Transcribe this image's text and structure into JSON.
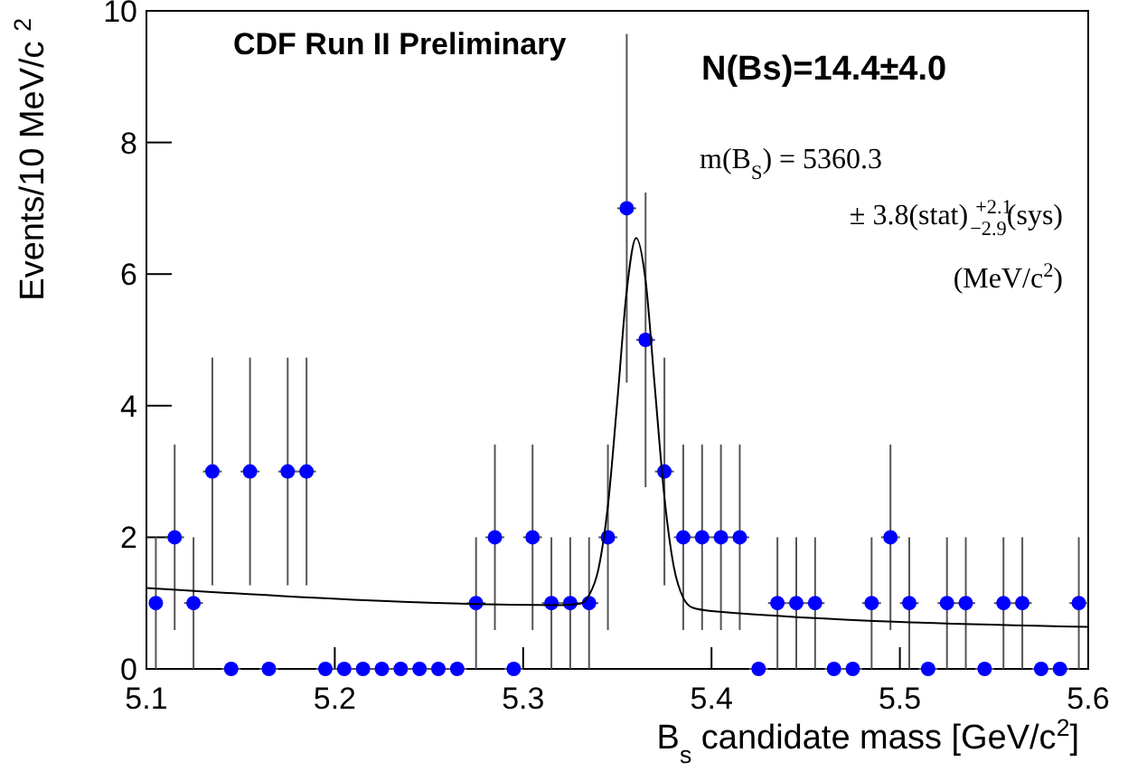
{
  "chart_data": {
    "type": "scatter",
    "xlabel": "B$_{s}$ candidate mass [GeV/c$^{2}$]",
    "ylabel": "Events/10 MeV/c $^{2}$",
    "annotations": [
      "CDF Run II Preliminary",
      "N(Bs)=14.4±4.0",
      "m(B$_{S}$) = 5360.3",
      "± 3.8(stat) $^{+2.1}$$_{−2.9}$(sys)",
      "(MeV/c$^{2}$)"
    ],
    "xlim": [
      5.1,
      5.6
    ],
    "xticks": [
      5.1,
      5.2,
      5.3,
      5.4,
      5.5,
      5.6
    ],
    "ylim": [
      0,
      10
    ],
    "yticks": [
      0,
      2,
      4,
      6,
      8,
      10
    ],
    "grid": false,
    "marker": "circle",
    "series": [
      {
        "type": "scatter",
        "color": "#0000ff",
        "x": [
          5.105,
          5.115,
          5.125,
          5.135,
          5.145,
          5.155,
          5.165,
          5.175,
          5.185,
          5.195,
          5.205,
          5.215,
          5.225,
          5.235,
          5.245,
          5.255,
          5.265,
          5.275,
          5.285,
          5.295,
          5.305,
          5.315,
          5.325,
          5.335,
          5.345,
          5.355,
          5.365,
          5.375,
          5.385,
          5.395,
          5.405,
          5.415,
          5.425,
          5.435,
          5.445,
          5.455,
          5.465,
          5.475,
          5.485,
          5.495,
          5.505,
          5.515,
          5.525,
          5.535,
          5.545,
          5.555,
          5.565,
          5.575,
          5.585,
          5.595
        ],
        "values": [
          1,
          2,
          1,
          3,
          0,
          3,
          0,
          3,
          3,
          0,
          0,
          0,
          0,
          0,
          0,
          0,
          0,
          1,
          2,
          0,
          2,
          1,
          1,
          1,
          2,
          7,
          5,
          3,
          2,
          2,
          2,
          2,
          0,
          1,
          1,
          1,
          0,
          0,
          1,
          2,
          1,
          0,
          1,
          1,
          0,
          1,
          1,
          0,
          0,
          1
        ],
        "errors": [
          1,
          1.41,
          1,
          1.73,
          null,
          1.73,
          null,
          1.73,
          1.73,
          null,
          null,
          null,
          null,
          null,
          null,
          null,
          null,
          1,
          1.41,
          null,
          1.41,
          1,
          1,
          1,
          1.41,
          2.65,
          2.24,
          1.73,
          1.41,
          1.41,
          1.41,
          1.41,
          null,
          1,
          1,
          1,
          null,
          null,
          1,
          1.41,
          1,
          null,
          1,
          1,
          null,
          1,
          1,
          null,
          null,
          1
        ],
        "xerrors": [
          null,
          0.005,
          0.005,
          0.005,
          0.005,
          0.005,
          0.005,
          0.005,
          0.005,
          0.005,
          0.005,
          0.005,
          0.005,
          0.005,
          0.005,
          0.005,
          0.005,
          0.005,
          0.005,
          0.005,
          0.005,
          0.005,
          0.005,
          0.005,
          0.005,
          0.005,
          0.005,
          0.005,
          0.005,
          0.005,
          0.005,
          0.005,
          0.005,
          0.005,
          0.005,
          0.005,
          0.005,
          0.005,
          0.005,
          0.005,
          0.005,
          0.005,
          0.005,
          0.005,
          0.005,
          0.005,
          0.005,
          0.005,
          0.005,
          0.005
        ]
      },
      {
        "type": "line",
        "color": "#000000",
        "marker": "none",
        "line_style": "solid",
        "x": [
          5.1,
          5.32,
          5.33,
          5.335,
          5.34,
          5.345,
          5.35,
          5.355,
          5.36,
          5.365,
          5.37,
          5.375,
          5.38,
          5.385,
          5.39,
          5.4,
          5.6
        ],
        "values": [
          1.23,
          0.97,
          0.99,
          1.12,
          1.52,
          2.48,
          4.07,
          5.75,
          6.55,
          5.9,
          4.25,
          2.61,
          1.55,
          1.08,
          0.93,
          0.88,
          0.64
        ]
      }
    ]
  }
}
